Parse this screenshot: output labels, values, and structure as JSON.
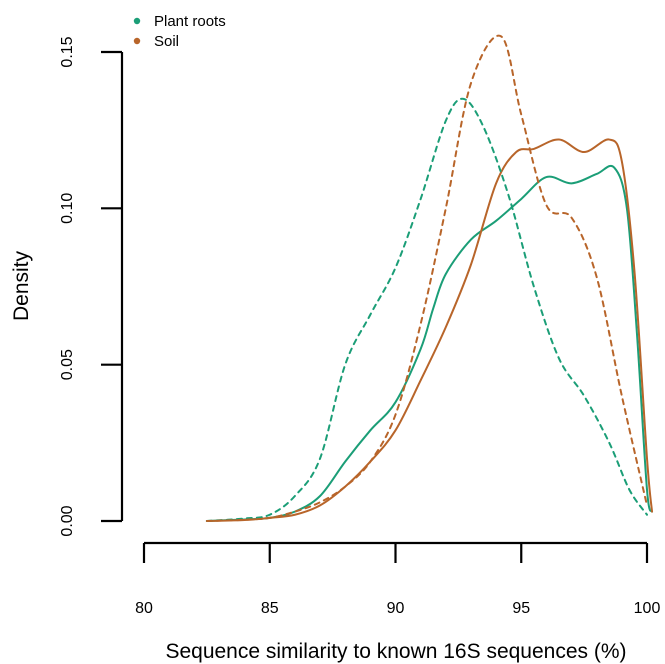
{
  "chart_data": {
    "type": "line",
    "title": "",
    "xlabel": "Sequence similarity to known 16S sequences (%)",
    "ylabel": "Density",
    "xlim": [
      80,
      100
    ],
    "ylim": [
      0,
      0.15
    ],
    "x_ticks": [
      "80",
      "85",
      "90",
      "95",
      "100"
    ],
    "y_ticks": [
      "0.00",
      "0.05",
      "0.10",
      "0.15"
    ],
    "legend": {
      "position": "top-left",
      "entries": [
        {
          "label": "Plant roots",
          "color": "#1b9e77"
        },
        {
          "label": "Soil",
          "color": "#b8652a"
        }
      ]
    },
    "series": [
      {
        "group": "Plant roots",
        "color": "#1b9e77",
        "line_style": "solid",
        "points": [
          [
            82.5,
            0
          ],
          [
            84,
            0.0005
          ],
          [
            85,
            0.001
          ],
          [
            86,
            0.003
          ],
          [
            87,
            0.008
          ],
          [
            88,
            0.019
          ],
          [
            89,
            0.029
          ],
          [
            90,
            0.038
          ],
          [
            91,
            0.055
          ],
          [
            91.5,
            0.068
          ],
          [
            92,
            0.079
          ],
          [
            93,
            0.09
          ],
          [
            94,
            0.096
          ],
          [
            95,
            0.103
          ],
          [
            96,
            0.11
          ],
          [
            97,
            0.108
          ],
          [
            98,
            0.111
          ],
          [
            98.7,
            0.113
          ],
          [
            99.2,
            0.1
          ],
          [
            99.6,
            0.06
          ],
          [
            100,
            0.01
          ],
          [
            100.2,
            0.003
          ]
        ]
      },
      {
        "group": "Soil",
        "color": "#b8652a",
        "line_style": "solid",
        "points": [
          [
            82.5,
            0
          ],
          [
            84,
            0.0003
          ],
          [
            85,
            0.001
          ],
          [
            86,
            0.002
          ],
          [
            87,
            0.005
          ],
          [
            88,
            0.011
          ],
          [
            89,
            0.019
          ],
          [
            90,
            0.029
          ],
          [
            91,
            0.045
          ],
          [
            92,
            0.062
          ],
          [
            93,
            0.082
          ],
          [
            94,
            0.108
          ],
          [
            94.8,
            0.118
          ],
          [
            95.5,
            0.119
          ],
          [
            96.5,
            0.122
          ],
          [
            97.5,
            0.118
          ],
          [
            98.5,
            0.122
          ],
          [
            99,
            0.115
          ],
          [
            99.5,
            0.08
          ],
          [
            100,
            0.02
          ],
          [
            100.2,
            0.003
          ]
        ]
      },
      {
        "group": "Plant roots",
        "color": "#1b9e77",
        "line_style": "dashed",
        "points": [
          [
            82.5,
            0
          ],
          [
            84,
            0.0008
          ],
          [
            85,
            0.002
          ],
          [
            86,
            0.008
          ],
          [
            87,
            0.02
          ],
          [
            88,
            0.05
          ],
          [
            89,
            0.066
          ],
          [
            90,
            0.081
          ],
          [
            91,
            0.103
          ],
          [
            92,
            0.128
          ],
          [
            92.7,
            0.135
          ],
          [
            93.5,
            0.126
          ],
          [
            94.5,
            0.104
          ],
          [
            95.5,
            0.075
          ],
          [
            96.5,
            0.052
          ],
          [
            97.5,
            0.04
          ],
          [
            98.5,
            0.025
          ],
          [
            99.3,
            0.01
          ],
          [
            100,
            0.002
          ]
        ]
      },
      {
        "group": "Soil",
        "color": "#b8652a",
        "line_style": "dashed",
        "points": [
          [
            82.5,
            0
          ],
          [
            84,
            0.0004
          ],
          [
            85,
            0.001
          ],
          [
            86,
            0.003
          ],
          [
            87,
            0.006
          ],
          [
            88,
            0.011
          ],
          [
            89,
            0.019
          ],
          [
            90,
            0.034
          ],
          [
            91,
            0.063
          ],
          [
            92,
            0.1
          ],
          [
            93,
            0.14
          ],
          [
            94.2,
            0.155
          ],
          [
            95,
            0.13
          ],
          [
            96,
            0.101
          ],
          [
            97,
            0.097
          ],
          [
            98,
            0.078
          ],
          [
            99,
            0.04
          ],
          [
            100,
            0.005
          ]
        ]
      }
    ]
  }
}
